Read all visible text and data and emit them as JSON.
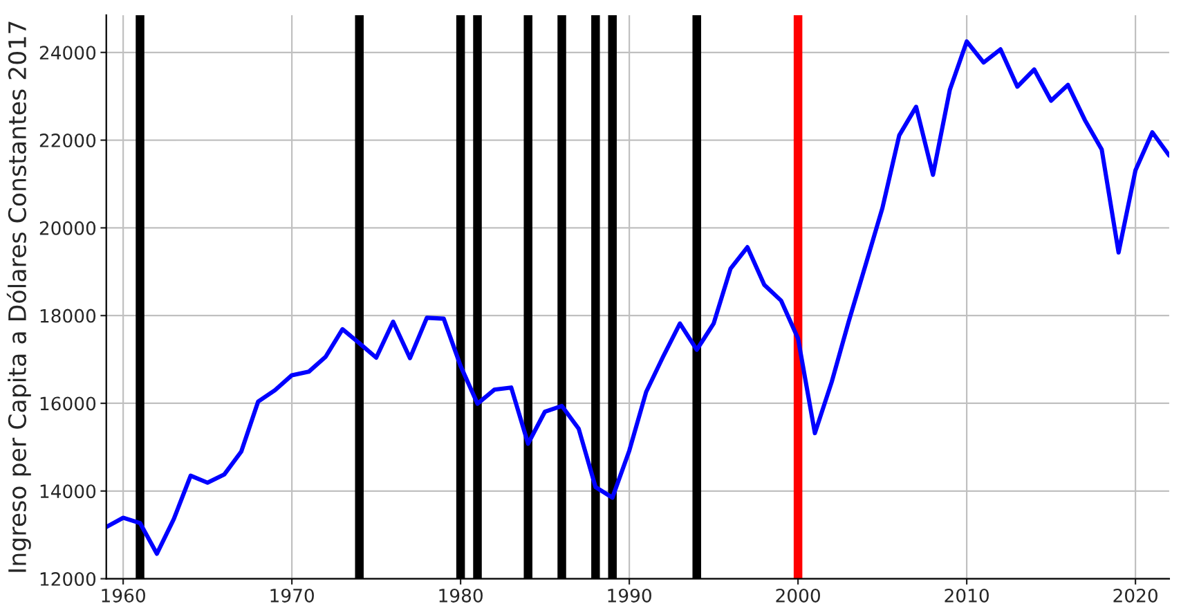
{
  "chart_data": {
    "type": "line",
    "ylabel": "Ingreso per Capita a Dólares Constantes 2017",
    "x": [
      1959,
      1960,
      1961,
      1962,
      1963,
      1964,
      1965,
      1966,
      1967,
      1968,
      1969,
      1970,
      1971,
      1972,
      1973,
      1974,
      1975,
      1976,
      1977,
      1978,
      1979,
      1980,
      1981,
      1982,
      1983,
      1984,
      1985,
      1986,
      1987,
      1988,
      1989,
      1990,
      1991,
      1992,
      1993,
      1994,
      1995,
      1996,
      1997,
      1998,
      1999,
      2000,
      2001,
      2002,
      2003,
      2004,
      2005,
      2006,
      2007,
      2008,
      2009,
      2010,
      2011,
      2012,
      2013,
      2014,
      2015,
      2016,
      2017,
      2018,
      2019,
      2020,
      2021,
      2022
    ],
    "series": [
      {
        "color": "#0000ff",
        "values": [
          13180,
          13390,
          13270,
          12570,
          13360,
          14350,
          14190,
          14380,
          14900,
          16040,
          16300,
          16640,
          16720,
          17060,
          17690,
          17370,
          17040,
          17860,
          17030,
          17950,
          17930,
          16850,
          15990,
          16310,
          16360,
          15080,
          15810,
          15940,
          15420,
          14090,
          13850,
          14920,
          16260,
          17060,
          17820,
          17220,
          17820,
          19070,
          19560,
          18700,
          18340,
          17480,
          15320,
          16490,
          17860,
          19150,
          20450,
          22110,
          22760,
          21210,
          23150,
          24250,
          23770,
          24070,
          23220,
          23610,
          22900,
          23260,
          22460,
          21790,
          19440,
          21310,
          22180,
          21650
        ]
      }
    ],
    "xlim": [
      1959,
      2022
    ],
    "ylim": [
      12000,
      24850
    ],
    "xticks": [
      1960,
      1970,
      1980,
      1990,
      2000,
      2010,
      2020
    ],
    "yticks": [
      12000,
      14000,
      16000,
      18000,
      20000,
      22000,
      24000
    ],
    "grid": true,
    "line_style": "solid",
    "marker": "none",
    "ref_lines": [
      {
        "axis": "x",
        "value": 1961,
        "color": "#000000"
      },
      {
        "axis": "x",
        "value": 1974,
        "color": "#000000"
      },
      {
        "axis": "x",
        "value": 1980,
        "color": "#000000"
      },
      {
        "axis": "x",
        "value": 1981,
        "color": "#000000"
      },
      {
        "axis": "x",
        "value": 1984,
        "color": "#000000"
      },
      {
        "axis": "x",
        "value": 1986,
        "color": "#000000"
      },
      {
        "axis": "x",
        "value": 1988,
        "color": "#000000"
      },
      {
        "axis": "x",
        "value": 1989,
        "color": "#000000"
      },
      {
        "axis": "x",
        "value": 1994,
        "color": "#000000"
      },
      {
        "axis": "x",
        "value": 2000,
        "color": "#ff0000"
      }
    ]
  }
}
